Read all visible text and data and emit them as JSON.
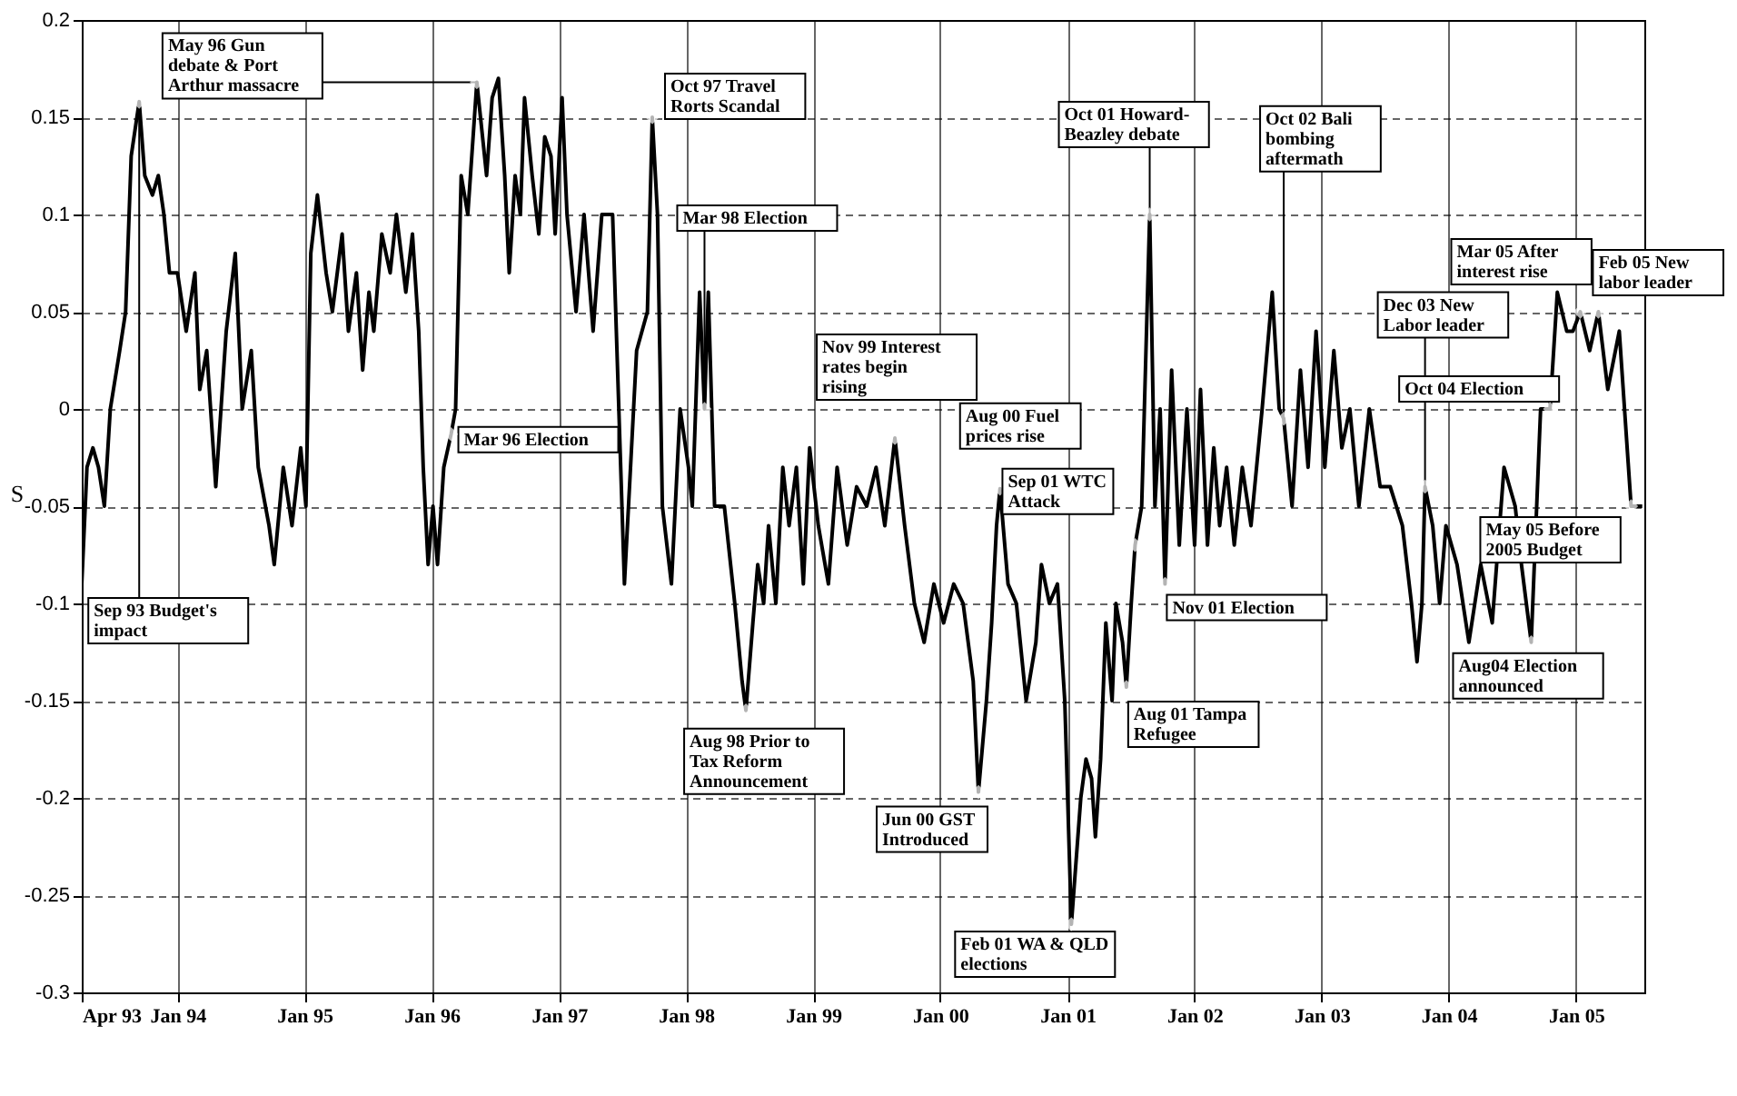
{
  "chart_data": {
    "type": "line",
    "ylabel": "S",
    "grid": true,
    "xlim": [
      "1993-04-01",
      "2005-07-16"
    ],
    "ylim": [
      -0.3,
      0.2
    ],
    "yticks": [
      -0.3,
      -0.25,
      -0.2,
      -0.15,
      -0.1,
      -0.05,
      0,
      0.05,
      0.1,
      0.15,
      0.2
    ],
    "xticks": [
      {
        "value": "1993-04-01",
        "label": "Apr 93"
      },
      {
        "value": "1994-01-01",
        "label": "Jan 94"
      },
      {
        "value": "1995-01-01",
        "label": "Jan 95"
      },
      {
        "value": "1996-01-01",
        "label": "Jan 96"
      },
      {
        "value": "1997-01-01",
        "label": "Jan 97"
      },
      {
        "value": "1998-01-01",
        "label": "Jan 98"
      },
      {
        "value": "1999-01-01",
        "label": "Jan 99"
      },
      {
        "value": "2000-01-01",
        "label": "Jan 00"
      },
      {
        "value": "2001-01-01",
        "label": "Jan 01"
      },
      {
        "value": "2002-01-01",
        "label": "Jan 02"
      },
      {
        "value": "2003-01-01",
        "label": "Jan 03"
      },
      {
        "value": "2004-01-01",
        "label": "Jan 04"
      },
      {
        "value": "2005-01-01",
        "label": "Jan 05"
      }
    ],
    "x": [
      "1993-04-01",
      "1993-04-16",
      "1993-05-03",
      "1993-05-19",
      "1993-06-05",
      "1993-06-22",
      "1993-07-19",
      "1993-08-05",
      "1993-08-21",
      "1993-09-13",
      "1993-09-29",
      "1993-10-21",
      "1993-11-07",
      "1993-11-23",
      "1993-12-09",
      "1994-01-01",
      "1994-01-26",
      "1994-02-20",
      "1994-03-06",
      "1994-03-26",
      "1994-04-21",
      "1994-05-21",
      "1994-06-16",
      "1994-07-06",
      "1994-08-01",
      "1994-08-21",
      "1994-09-21",
      "1994-10-06",
      "1994-11-01",
      "1994-11-26",
      "1994-12-21",
      "1995-01-05",
      "1995-01-19",
      "1995-02-07",
      "1995-03-04",
      "1995-03-22",
      "1995-04-19",
      "1995-05-07",
      "1995-05-30",
      "1995-06-17",
      "1995-07-05",
      "1995-07-19",
      "1995-08-11",
      "1995-09-04",
      "1995-09-22",
      "1995-10-19",
      "1995-11-07",
      "1995-11-25",
      "1995-12-08",
      "1995-12-22",
      "1996-01-05",
      "1996-01-18",
      "1996-02-05",
      "1996-02-26",
      "1996-03-10",
      "1996-03-26",
      "1996-04-14",
      "1996-05-10",
      "1996-06-07",
      "1996-06-23",
      "1996-07-11",
      "1996-07-29",
      "1996-08-11",
      "1996-08-28",
      "1996-09-12",
      "1996-09-24",
      "1996-10-16",
      "1996-11-04",
      "1996-11-21",
      "1996-12-09",
      "1996-12-21",
      "1997-01-10",
      "1997-01-24",
      "1997-02-19",
      "1997-03-14",
      "1997-04-09",
      "1997-05-04",
      "1997-06-04",
      "1997-07-08",
      "1997-08-12",
      "1997-09-12",
      "1997-09-26",
      "1997-10-11",
      "1997-10-25",
      "1997-11-20",
      "1997-12-15",
      "1998-01-08",
      "1998-01-19",
      "1998-02-09",
      "1998-02-23",
      "1998-03-06",
      "1998-03-24",
      "1998-04-21",
      "1998-05-21",
      "1998-06-11",
      "1998-06-22",
      "1998-07-12",
      "1998-07-26",
      "1998-08-12",
      "1998-08-26",
      "1998-09-16",
      "1998-10-06",
      "1998-10-24",
      "1998-11-14",
      "1998-12-04",
      "1998-12-22",
      "1999-01-16",
      "1999-02-14",
      "1999-03-11",
      "1999-04-09",
      "1999-05-06",
      "1999-06-04",
      "1999-07-01",
      "1999-07-26",
      "1999-08-24",
      "1999-09-21",
      "1999-10-19",
      "1999-11-16",
      "1999-12-14",
      "2000-01-11",
      "2000-02-09",
      "2000-03-07",
      "2000-04-05",
      "2000-04-20",
      "2000-05-13",
      "2000-05-28",
      "2000-06-11",
      "2000-06-21",
      "2000-07-14",
      "2000-08-07",
      "2000-09-04",
      "2000-10-02",
      "2000-10-18",
      "2000-11-10",
      "2000-12-03",
      "2000-12-24",
      "2001-01-12",
      "2001-02-08",
      "2001-02-23",
      "2001-03-11",
      "2001-03-22",
      "2001-04-06",
      "2001-04-21",
      "2001-05-09",
      "2001-05-20",
      "2001-06-08",
      "2001-06-19",
      "2001-07-03",
      "2001-07-14",
      "2001-08-02",
      "2001-08-25",
      "2001-09-09",
      "2001-09-24",
      "2001-10-08",
      "2001-10-27",
      "2001-11-18",
      "2001-12-10",
      "2002-01-01",
      "2002-01-18",
      "2002-02-07",
      "2002-02-25",
      "2002-03-14",
      "2002-04-03",
      "2002-04-25",
      "2002-05-18",
      "2002-06-12",
      "2002-07-14",
      "2002-08-12",
      "2002-09-01",
      "2002-09-14",
      "2002-10-08",
      "2002-11-01",
      "2002-11-23",
      "2002-12-16",
      "2003-01-10",
      "2003-02-05",
      "2003-02-28",
      "2003-03-23",
      "2003-04-18",
      "2003-05-18",
      "2003-06-18",
      "2003-07-17",
      "2003-08-21",
      "2003-09-16",
      "2003-10-02",
      "2003-10-16",
      "2003-10-25",
      "2003-11-16",
      "2003-12-06",
      "2003-12-24",
      "2004-01-25",
      "2004-02-28",
      "2004-04-02",
      "2004-05-05",
      "2004-06-08",
      "2004-07-10",
      "2004-07-28",
      "2004-08-25",
      "2004-09-21",
      "2004-10-18",
      "2004-11-08",
      "2004-12-05",
      "2004-12-23",
      "2005-01-13",
      "2005-02-09",
      "2005-03-06",
      "2005-04-02",
      "2005-05-05",
      "2005-06-08",
      "2005-07-10"
    ],
    "series": [
      {
        "color": "#000000",
        "values": [
          -0.09,
          -0.03,
          -0.02,
          -0.03,
          -0.05,
          0.0,
          0.03,
          0.05,
          0.13,
          0.158,
          0.12,
          0.11,
          0.12,
          0.1,
          0.07,
          0.07,
          0.04,
          0.07,
          0.01,
          0.03,
          -0.04,
          0.04,
          0.08,
          0.0,
          0.03,
          -0.03,
          -0.06,
          -0.08,
          -0.03,
          -0.06,
          -0.02,
          -0.05,
          0.08,
          0.11,
          0.07,
          0.05,
          0.09,
          0.04,
          0.07,
          0.02,
          0.06,
          0.04,
          0.09,
          0.07,
          0.1,
          0.06,
          0.09,
          0.04,
          -0.03,
          -0.08,
          -0.05,
          -0.08,
          -0.03,
          -0.013,
          0.0,
          0.12,
          0.1,
          0.168,
          0.12,
          0.16,
          0.17,
          0.12,
          0.07,
          0.12,
          0.1,
          0.16,
          0.12,
          0.09,
          0.14,
          0.13,
          0.09,
          0.16,
          0.1,
          0.05,
          0.1,
          0.04,
          0.1,
          0.1,
          -0.09,
          0.03,
          0.05,
          0.15,
          0.1,
          -0.05,
          -0.09,
          0.0,
          -0.03,
          -0.05,
          0.06,
          0.0,
          0.06,
          -0.05,
          -0.05,
          -0.1,
          -0.14,
          -0.155,
          -0.11,
          -0.08,
          -0.1,
          -0.06,
          -0.1,
          -0.03,
          -0.06,
          -0.03,
          -0.09,
          -0.02,
          -0.06,
          -0.09,
          -0.03,
          -0.07,
          -0.04,
          -0.05,
          -0.03,
          -0.06,
          -0.015,
          -0.06,
          -0.1,
          -0.12,
          -0.09,
          -0.11,
          -0.09,
          -0.1,
          -0.14,
          -0.197,
          -0.15,
          -0.11,
          -0.06,
          -0.041,
          -0.09,
          -0.1,
          -0.15,
          -0.12,
          -0.08,
          -0.1,
          -0.09,
          -0.15,
          -0.265,
          -0.2,
          -0.18,
          -0.19,
          -0.22,
          -0.18,
          -0.11,
          -0.15,
          -0.1,
          -0.12,
          -0.143,
          -0.1,
          -0.07,
          -0.05,
          0.1,
          -0.05,
          0.0,
          -0.09,
          0.02,
          -0.07,
          0.0,
          -0.07,
          0.01,
          -0.07,
          -0.02,
          -0.06,
          -0.03,
          -0.07,
          -0.03,
          -0.06,
          0.0,
          0.06,
          0.0,
          -0.005,
          -0.05,
          0.02,
          -0.03,
          0.04,
          -0.03,
          0.03,
          -0.02,
          0.0,
          -0.05,
          0.0,
          -0.04,
          -0.04,
          -0.06,
          -0.1,
          -0.13,
          -0.1,
          -0.04,
          -0.06,
          -0.1,
          -0.06,
          -0.08,
          -0.12,
          -0.08,
          -0.11,
          -0.03,
          -0.05,
          -0.08,
          -0.12,
          0.0,
          0.0,
          0.06,
          0.04,
          0.04,
          0.05,
          0.03,
          0.05,
          0.01,
          0.04,
          -0.05,
          -0.05
        ]
      }
    ],
    "annotations": [
      {
        "text": "Sep 93 Budget's impact",
        "x": "1993-09-13",
        "y": 0.158
      },
      {
        "text": "May 96 Gun debate & Port Arthur massacre",
        "x": "1996-05-10",
        "y": 0.168
      },
      {
        "text": "Mar 96 Election",
        "x": "1996-02-26",
        "y": -0.013
      },
      {
        "text": "Oct 97 Travel Rorts Scandal",
        "x": "1997-09-26",
        "y": 0.15
      },
      {
        "text": "Mar 98 Election",
        "x": "1998-02-23",
        "y": 0.0
      },
      {
        "text": "Aug 98 Prior to Tax Reform Announcement",
        "x": "1998-06-22",
        "y": -0.155
      },
      {
        "text": "Nov 99 Interest rates begin rising",
        "x": "1999-08-24",
        "y": -0.015
      },
      {
        "text": "Jun 00 GST Introduced",
        "x": "2000-04-20",
        "y": -0.197
      },
      {
        "text": "Aug 00 Fuel prices rise",
        "x": "2000-06-21",
        "y": -0.041
      },
      {
        "text": "Sep 01 WTC Attack",
        "x": "2001-07-14",
        "y": -0.07
      },
      {
        "text": "Feb 01 WA & QLD elections",
        "x": "2001-01-12",
        "y": -0.265
      },
      {
        "text": "Aug 01 Tampa Refugee",
        "x": "2001-06-19",
        "y": -0.143
      },
      {
        "text": "Oct 01 Howard-Beazley debate",
        "x": "2001-08-25",
        "y": 0.1
      },
      {
        "text": "Nov 01 Election",
        "x": "2001-10-08",
        "y": -0.09
      },
      {
        "text": "Oct 02 Bali bombing aftermath",
        "x": "2002-09-14",
        "y": -0.005
      },
      {
        "text": "Dec 03 New Labor leader",
        "x": "2003-10-25",
        "y": -0.04
      },
      {
        "text": "Aug04 Election announced",
        "x": "2004-08-25",
        "y": -0.12
      },
      {
        "text": "Oct 04 Election",
        "x": "2004-10-18",
        "y": 0.0
      },
      {
        "text": "Feb 05 New labor leader",
        "x": "2005-03-06",
        "y": 0.05
      },
      {
        "text": "Mar 05 After interest rise",
        "x": "2005-01-13",
        "y": 0.05
      },
      {
        "text": "May 05 Before 2005 Budget",
        "x": "2005-06-08",
        "y": -0.05
      }
    ]
  }
}
